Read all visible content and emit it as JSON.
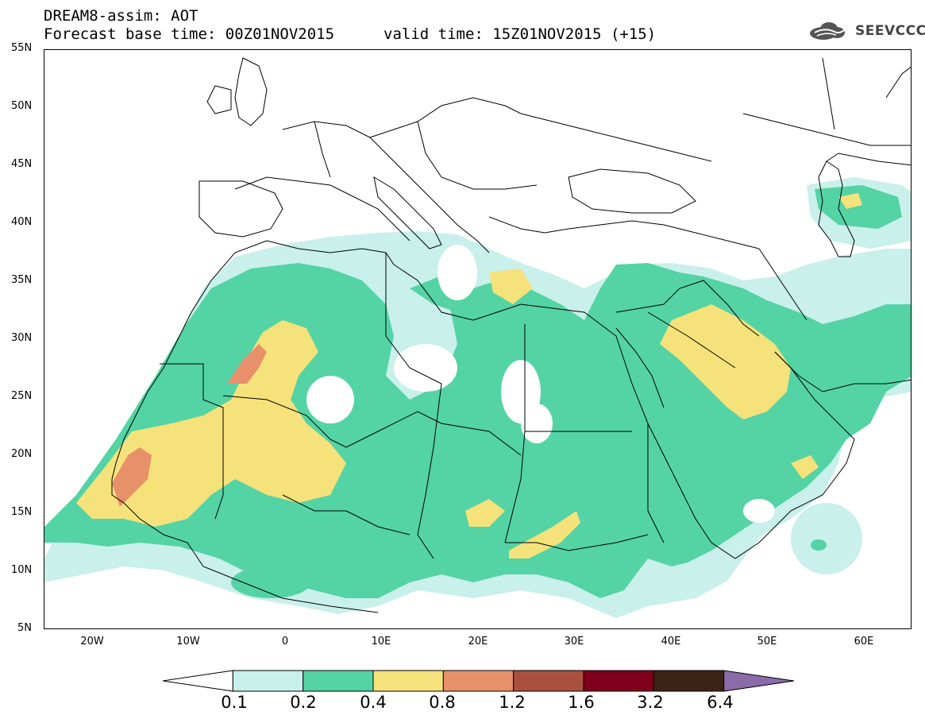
{
  "title": {
    "line1": "DREAM8-assim: AOT",
    "line2": "Forecast base time: 00Z01NOV2015",
    "valid": "valid time: 15Z01NOV2015 (+15)"
  },
  "logo": {
    "text": "SEEVCCC",
    "icon": "cloud-icon"
  },
  "map": {
    "lat_labels": [
      "55N",
      "50N",
      "45N",
      "40N",
      "35N",
      "30N",
      "25N",
      "20N",
      "15N",
      "10N",
      "5N"
    ],
    "lon_labels": [
      "20W",
      "10W",
      "0",
      "10E",
      "20E",
      "30E",
      "40E",
      "50E",
      "60E"
    ],
    "lon_range": [
      -25,
      65
    ],
    "lat_range": [
      5,
      55
    ]
  },
  "legend": {
    "levels": [
      "0.1",
      "0.2",
      "0.4",
      "0.8",
      "1.2",
      "1.6",
      "3.2",
      "6.4"
    ],
    "colors": [
      "#ffffff",
      "#c9f0ea",
      "#54d3a5",
      "#f5e27b",
      "#e8906a",
      "#a9503f",
      "#80001c",
      "#3b2415",
      "#8b6ba8"
    ]
  }
}
